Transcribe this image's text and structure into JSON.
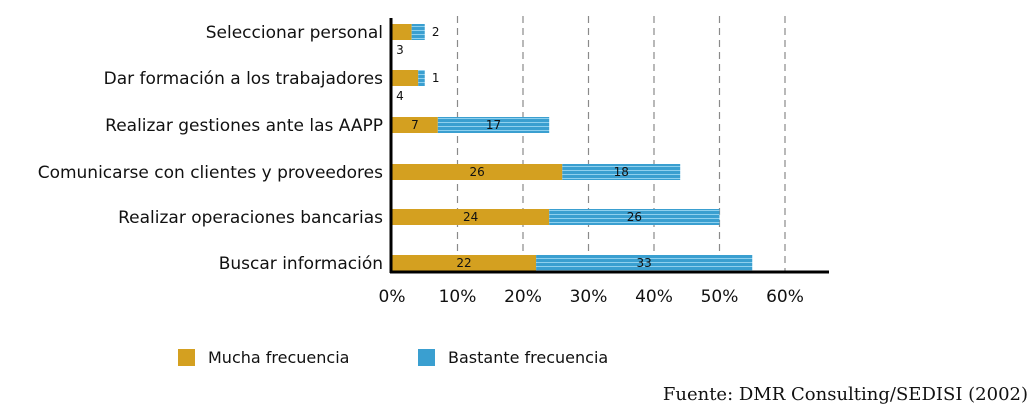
{
  "chart_data": {
    "type": "bar",
    "orientation": "horizontal",
    "stacked": true,
    "categories": [
      "Seleccionar personal",
      "Dar formación a los trabajadores",
      "Realizar gestiones ante las AAPP",
      "Comunicarse con clientes y proveedores",
      "Realizar operaciones bancarias",
      "Buscar información"
    ],
    "series": [
      {
        "name": "Mucha frecuencia",
        "color": "#d4a020",
        "values": [
          3,
          4,
          7,
          26,
          24,
          22
        ]
      },
      {
        "name": "Bastante frecuencia",
        "color": "#3a9fd0",
        "values": [
          2,
          1,
          17,
          18,
          26,
          33
        ]
      }
    ],
    "xticks": [
      "0%",
      "10%",
      "20%",
      "30%",
      "40%",
      "50%",
      "60%"
    ],
    "xlim": [
      0,
      65
    ],
    "grid": "vertical-dashed",
    "legend_position": "bottom-left"
  },
  "source": "Fuente: DMR Consulting/SEDISI (2002)"
}
